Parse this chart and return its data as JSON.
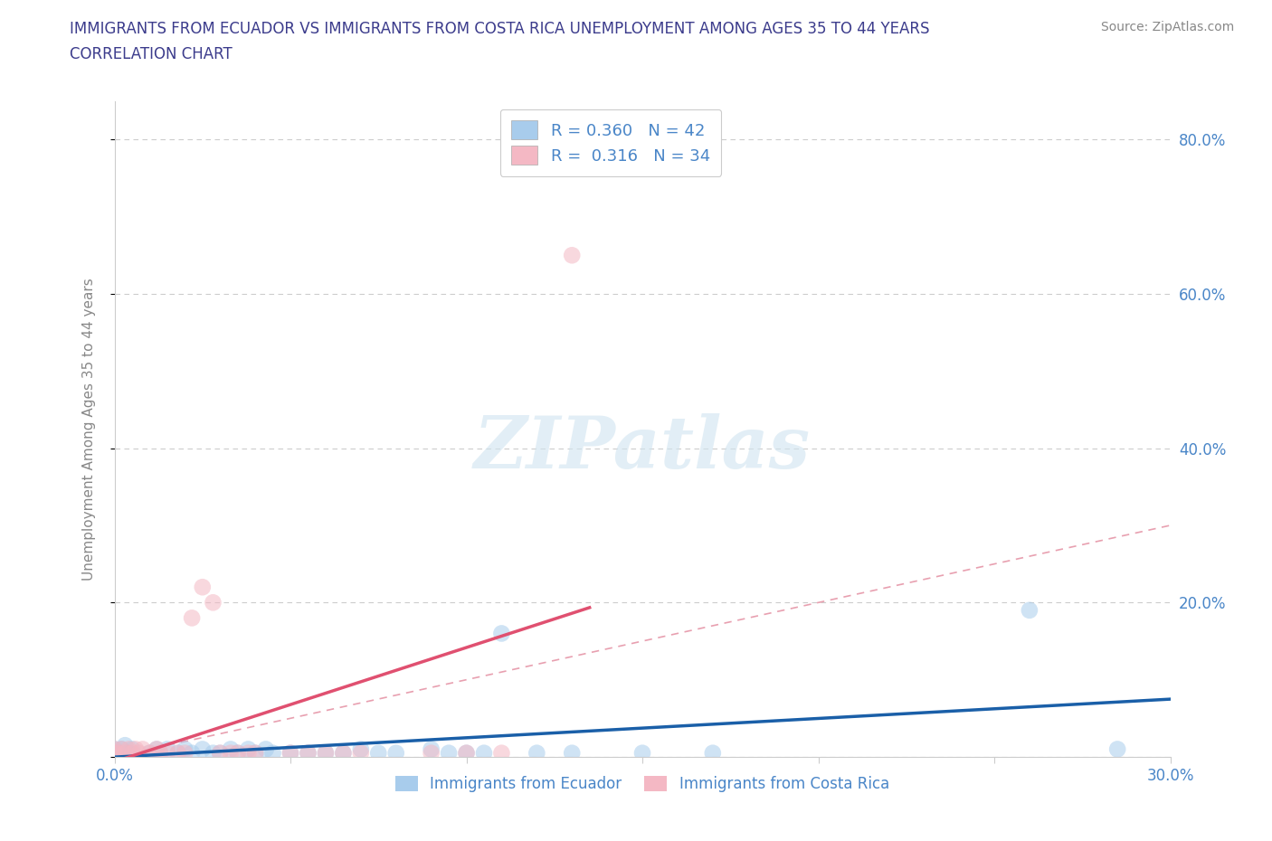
{
  "title_line1": "IMMIGRANTS FROM ECUADOR VS IMMIGRANTS FROM COSTA RICA UNEMPLOYMENT AMONG AGES 35 TO 44 YEARS",
  "title_line2": "CORRELATION CHART",
  "source": "Source: ZipAtlas.com",
  "ylabel": "Unemployment Among Ages 35 to 44 years",
  "xlim": [
    0.0,
    0.3
  ],
  "ylim": [
    0.0,
    0.85
  ],
  "x_ticks": [
    0.0,
    0.05,
    0.1,
    0.15,
    0.2,
    0.25,
    0.3
  ],
  "x_tick_labels": [
    "0.0%",
    "",
    "",
    "",
    "",
    "",
    "30.0%"
  ],
  "y_ticks": [
    0.0,
    0.2,
    0.4,
    0.6,
    0.8
  ],
  "y_tick_labels": [
    "",
    "20.0%",
    "40.0%",
    "60.0%",
    "80.0%"
  ],
  "ecuador_color": "#a8ccec",
  "costa_rica_color": "#f4b8c4",
  "ecuador_line_color": "#1a5fa8",
  "costa_rica_line_color": "#e05070",
  "legend_ecuador_label": "Immigrants from Ecuador",
  "legend_costa_rica_label": "Immigrants from Costa Rica",
  "R_ecuador": 0.36,
  "N_ecuador": 42,
  "R_costa_rica": 0.316,
  "N_costa_rica": 34,
  "ecuador_x": [
    0.0,
    0.0,
    0.0,
    0.001,
    0.002,
    0.003,
    0.004,
    0.005,
    0.01,
    0.012,
    0.013,
    0.015,
    0.018,
    0.02,
    0.022,
    0.025,
    0.028,
    0.03,
    0.033,
    0.035,
    0.038,
    0.04,
    0.043,
    0.045,
    0.05,
    0.055,
    0.06,
    0.065,
    0.07,
    0.075,
    0.08,
    0.09,
    0.095,
    0.1,
    0.105,
    0.11,
    0.12,
    0.13,
    0.15,
    0.17,
    0.26,
    0.285
  ],
  "ecuador_y": [
    0.0,
    0.005,
    0.01,
    0.005,
    0.01,
    0.015,
    0.005,
    0.01,
    0.005,
    0.01,
    0.005,
    0.01,
    0.005,
    0.01,
    0.005,
    0.01,
    0.005,
    0.005,
    0.01,
    0.005,
    0.01,
    0.005,
    0.01,
    0.005,
    0.005,
    0.005,
    0.005,
    0.005,
    0.01,
    0.005,
    0.005,
    0.01,
    0.005,
    0.005,
    0.005,
    0.16,
    0.005,
    0.005,
    0.005,
    0.005,
    0.19,
    0.01
  ],
  "costa_rica_x": [
    0.0,
    0.0,
    0.0,
    0.001,
    0.002,
    0.003,
    0.004,
    0.005,
    0.006,
    0.007,
    0.008,
    0.01,
    0.012,
    0.013,
    0.015,
    0.018,
    0.02,
    0.022,
    0.025,
    0.028,
    0.03,
    0.033,
    0.035,
    0.038,
    0.04,
    0.05,
    0.055,
    0.06,
    0.065,
    0.07,
    0.09,
    0.1,
    0.11,
    0.13
  ],
  "costa_rica_y": [
    0.0,
    0.005,
    0.01,
    0.005,
    0.01,
    0.005,
    0.01,
    0.005,
    0.01,
    0.005,
    0.01,
    0.005,
    0.01,
    0.005,
    0.005,
    0.005,
    0.005,
    0.18,
    0.22,
    0.2,
    0.005,
    0.005,
    0.005,
    0.005,
    0.005,
    0.005,
    0.005,
    0.005,
    0.005,
    0.005,
    0.005,
    0.005,
    0.005,
    0.65
  ],
  "watermark": "ZIPatlas",
  "background_color": "#ffffff",
  "grid_color": "#cccccc",
  "title_color": "#3c3c8c",
  "axis_label_color": "#888888",
  "tick_label_color": "#4a86c8",
  "legend_text_color": "#4a86c8"
}
